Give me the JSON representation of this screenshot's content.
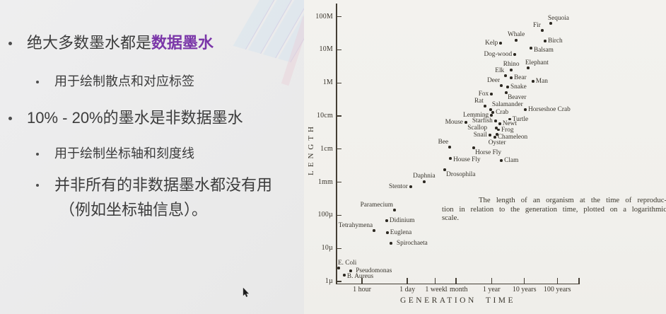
{
  "slide": {
    "highlight_color": "#7a36a8",
    "text_color": "#3c3c3c",
    "bullets": [
      {
        "level": 1,
        "text": "绝大多数墨水都是",
        "highlight": "数据墨水"
      },
      {
        "level": 2,
        "text": "用于绘制散点和对应标签"
      },
      {
        "level": 1,
        "text": "10% - 20%的墨水是非数据墨水"
      },
      {
        "level": 2,
        "text": "用于绘制坐标轴和刻度线"
      },
      {
        "level": 2,
        "text": "并非所有的非数据墨水都没有用",
        "text2": "（例如坐标轴信息）。"
      }
    ]
  },
  "chart_data": {
    "type": "scatter",
    "log_scale": true,
    "title": "",
    "xlabel": "GENERATION TIME",
    "ylabel": "LENGTH",
    "x_unit": "log10 of generation time in hours",
    "y_unit": "log10 of organism length in meters",
    "x_range_log10_hours": [
      -0.8,
      6.6
    ],
    "y_range_log10_meters": [
      -6,
      2.4
    ],
    "grid": false,
    "caption_lines": [
      "The length of an organism at the time of reproduc-",
      "tion in relation to the generation time, plotted on a logarithmic",
      "scale."
    ],
    "x_ticks": [
      {
        "label": "1 hour",
        "x": 0
      },
      {
        "label": "1 day",
        "x": 1.38
      },
      {
        "label": "1 week",
        "x": 2.23
      },
      {
        "label": "1 month",
        "x": 2.86
      },
      {
        "label": "1 year",
        "x": 3.94
      },
      {
        "label": "10 years",
        "x": 4.94
      },
      {
        "label": "100 years",
        "x": 5.94
      },
      {
        "label": "",
        "x": 6.6
      }
    ],
    "y_ticks": [
      {
        "label": "100M",
        "y": 2
      },
      {
        "label": "10M",
        "y": 1
      },
      {
        "label": "1M",
        "y": 0
      },
      {
        "label": "10cm",
        "y": -1
      },
      {
        "label": "1cm",
        "y": -2
      },
      {
        "label": "1mm",
        "y": -3
      },
      {
        "label": "100µ",
        "y": -4
      },
      {
        "label": "10µ",
        "y": -5
      },
      {
        "label": "1µ",
        "y": -6
      }
    ],
    "points": [
      {
        "name": "Sequoia",
        "x": 5.74,
        "y": 1.8,
        "lp": "tr",
        "dx": -6
      },
      {
        "name": "Fir",
        "x": 5.48,
        "y": 1.59,
        "lp": "tl"
      },
      {
        "name": "Birch",
        "x": 5.57,
        "y": 1.27,
        "lp": "r"
      },
      {
        "name": "Whale",
        "x": 4.69,
        "y": 1.29,
        "lp": "t"
      },
      {
        "name": "Kelp",
        "x": 4.22,
        "y": 1.2,
        "lp": "l"
      },
      {
        "name": "Balsam",
        "x": 5.14,
        "y": 1.05,
        "lp": "r",
        "dy": 3
      },
      {
        "name": "Dog-wood",
        "x": 4.65,
        "y": 0.86,
        "lp": "l"
      },
      {
        "name": "Elephant",
        "x": 5.05,
        "y": 0.45,
        "lp": "tr",
        "dx": -6
      },
      {
        "name": "Rhino",
        "x": 4.54,
        "y": 0.39,
        "lp": "t"
      },
      {
        "name": "Elk",
        "x": 4.37,
        "y": 0.22,
        "lp": "tl"
      },
      {
        "name": "Bear",
        "x": 4.54,
        "y": 0.15,
        "lp": "r"
      },
      {
        "name": "Man",
        "x": 5.2,
        "y": 0.05,
        "lp": "r"
      },
      {
        "name": "Deer",
        "x": 4.24,
        "y": -0.08,
        "lp": "tl"
      },
      {
        "name": "Snake",
        "x": 4.43,
        "y": -0.12,
        "lp": "r"
      },
      {
        "name": "Beaver",
        "x": 4.39,
        "y": -0.29,
        "lp": "br"
      },
      {
        "name": "Fox",
        "x": 3.94,
        "y": -0.34,
        "lp": "l"
      },
      {
        "name": "Rat",
        "x": 3.74,
        "y": -0.7,
        "lp": "tl"
      },
      {
        "name": "Salamander",
        "x": 3.91,
        "y": -0.81,
        "lp": "tr"
      },
      {
        "name": "Horseshoe Crab",
        "x": 4.97,
        "y": -0.81,
        "lp": "r"
      },
      {
        "name": "Crab",
        "x": 3.98,
        "y": -0.89,
        "lp": "r"
      },
      {
        "name": "Lemming",
        "x": 3.94,
        "y": -0.98,
        "lp": "l"
      },
      {
        "name": "Starfish",
        "x": 4.06,
        "y": -1.15,
        "lp": "l"
      },
      {
        "name": "Turtle",
        "x": 4.49,
        "y": -1.1,
        "lp": "r"
      },
      {
        "name": "Mouse",
        "x": 3.16,
        "y": -1.19,
        "lp": "l"
      },
      {
        "name": "Newt",
        "x": 4.19,
        "y": -1.23,
        "lp": "r"
      },
      {
        "name": "Scallop",
        "x": 4.09,
        "y": -1.36,
        "lp": "l",
        "dx": -9
      },
      {
        "name": "Frog",
        "x": 4.15,
        "y": -1.42,
        "lp": "r"
      },
      {
        "name": "Snail",
        "x": 3.89,
        "y": -1.58,
        "lp": "l"
      },
      {
        "name": "Chameleon",
        "x": 4.04,
        "y": -1.64,
        "lp": "r"
      },
      {
        "name": "Oyster",
        "x": 4.11,
        "y": -1.56,
        "lp": "b",
        "dy": 4
      },
      {
        "name": "Bee",
        "x": 2.67,
        "y": -1.94,
        "lp": "tl"
      },
      {
        "name": "Horse Fly",
        "x": 3.4,
        "y": -1.96,
        "lp": "br"
      },
      {
        "name": "House Fly",
        "x": 2.69,
        "y": -2.28,
        "lp": "r",
        "dy": 2
      },
      {
        "name": "Clam",
        "x": 4.24,
        "y": -2.35,
        "lp": "r"
      },
      {
        "name": "Drosophila",
        "x": 2.52,
        "y": -2.62,
        "lp": "br"
      },
      {
        "name": "Daphnia",
        "x": 1.89,
        "y": -2.99,
        "lp": "t"
      },
      {
        "name": "Stentor",
        "x": 1.48,
        "y": -3.14,
        "lp": "l"
      },
      {
        "name": "Paramecium",
        "x": 0.99,
        "y": -3.84,
        "lp": "tl"
      },
      {
        "name": "Didinium",
        "x": 0.75,
        "y": -4.16,
        "lp": "r"
      },
      {
        "name": "Tetrahymena",
        "x": 0.37,
        "y": -4.46,
        "lp": "tl"
      },
      {
        "name": "Euglena",
        "x": 0.77,
        "y": -4.53,
        "lp": "r"
      },
      {
        "name": "Spirochaeta",
        "x": 0.88,
        "y": -4.85,
        "lp": "r",
        "dx": 4
      },
      {
        "name": "E. Coli",
        "x": -0.71,
        "y": -5.59,
        "lp": "tr",
        "dx": -3
      },
      {
        "name": "Pseudomonas",
        "x": -0.34,
        "y": -5.68,
        "lp": "r",
        "dx": 3
      },
      {
        "name": "B. Aureus",
        "x": -0.54,
        "y": -5.81,
        "lp": "r",
        "dy": 2
      }
    ]
  }
}
